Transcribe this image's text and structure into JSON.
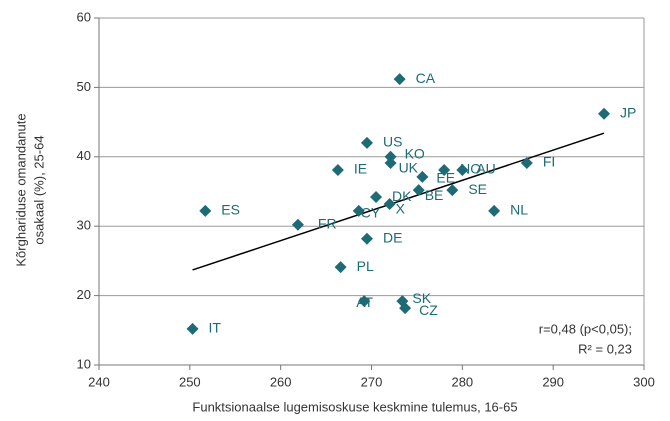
{
  "chart_data": {
    "type": "scatter",
    "x_label": "Funktsionaalse lugemisoskuse keskmine tulemus, 16-65",
    "y_label": [
      "Kõrghariduse omandanute",
      "osakaal (%), 25-64"
    ],
    "color": "#1e6b75",
    "points": [
      {
        "label": "CA",
        "x": 273.1,
        "y": 51.2
      },
      {
        "label": "JP",
        "x": 295.6,
        "y": 46.2
      },
      {
        "label": "US",
        "x": 269.5,
        "y": 42.0
      },
      {
        "label": "KO",
        "x": 272.1,
        "y": 40.0
      },
      {
        "label": "UK",
        "x": 272.1,
        "y": 39.1
      },
      {
        "label": "NO",
        "x": 278.0,
        "y": 38.1
      },
      {
        "label": "AU",
        "x": 280.0,
        "y": 38.1
      },
      {
        "label": "IE",
        "x": 266.3,
        "y": 38.1
      },
      {
        "label": "FI",
        "x": 287.1,
        "y": 39.1
      },
      {
        "label": "EE",
        "x": 275.6,
        "y": 37.1
      },
      {
        "label": "SE",
        "x": 278.9,
        "y": 35.2
      },
      {
        "label": "BE",
        "x": 275.2,
        "y": 35.2
      },
      {
        "label": "DK",
        "x": 270.5,
        "y": 34.2
      },
      {
        "label": "X",
        "x": 272.0,
        "y": 33.2
      },
      {
        "label": "CY",
        "x": 268.6,
        "y": 32.2
      },
      {
        "label": "ES",
        "x": 251.7,
        "y": 32.2
      },
      {
        "label": "NL",
        "x": 283.5,
        "y": 32.2
      },
      {
        "label": "FR",
        "x": 261.9,
        "y": 30.2
      },
      {
        "label": "DE",
        "x": 269.5,
        "y": 28.2
      },
      {
        "label": "PL",
        "x": 266.6,
        "y": 24.1
      },
      {
        "label": "AT",
        "x": 269.2,
        "y": 19.2
      },
      {
        "label": "SK",
        "x": 273.4,
        "y": 19.2
      },
      {
        "label": "CZ",
        "x": 273.7,
        "y": 18.2
      },
      {
        "label": "IT",
        "x": 250.3,
        "y": 15.2
      }
    ],
    "trendline": {
      "x": [
        250.3,
        295.6
      ],
      "y": [
        23.7,
        43.4
      ]
    },
    "annotation": [
      "r=0,48 (p<0,05);",
      "R² = 0,23"
    ],
    "xlim": [
      240,
      300
    ],
    "xticks": [
      240,
      250,
      260,
      270,
      280,
      290,
      300
    ],
    "ylim": [
      10,
      60
    ],
    "yticks": [
      10,
      20,
      30,
      40,
      50,
      60
    ],
    "grid": true
  }
}
